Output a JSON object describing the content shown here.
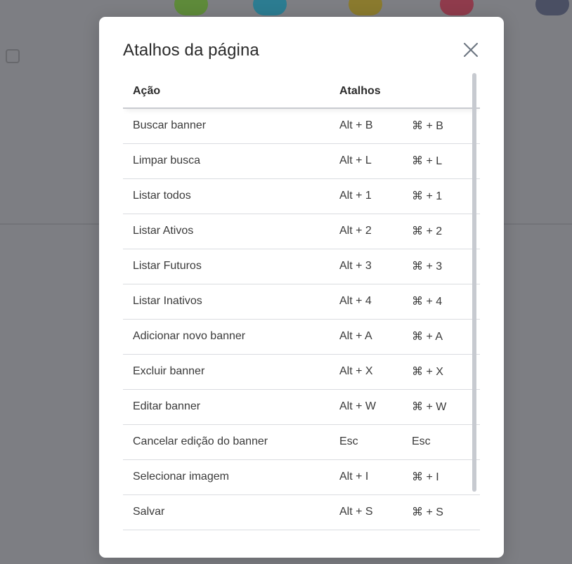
{
  "background": {
    "chip_colors": [
      "#5e8a3a",
      "#2c7c91",
      "#8a7a2e",
      "#8f3b4c",
      "#4a4f63"
    ]
  },
  "modal": {
    "title": "Atalhos da página",
    "close_icon": "close-icon",
    "columns": {
      "action": "Ação",
      "shortcuts": "Atalhos"
    },
    "rows": [
      {
        "action": "Buscar banner",
        "win": "Alt + B",
        "mac": "⌘ + B"
      },
      {
        "action": "Limpar busca",
        "win": "Alt + L",
        "mac": "⌘ + L"
      },
      {
        "action": "Listar todos",
        "win": "Alt + 1",
        "mac": "⌘ + 1"
      },
      {
        "action": "Listar Ativos",
        "win": "Alt + 2",
        "mac": "⌘ + 2"
      },
      {
        "action": "Listar Futuros",
        "win": "Alt + 3",
        "mac": "⌘ + 3"
      },
      {
        "action": "Listar Inativos",
        "win": "Alt + 4",
        "mac": "⌘ + 4"
      },
      {
        "action": "Adicionar novo banner",
        "win": "Alt + A",
        "mac": "⌘ + A"
      },
      {
        "action": "Excluir banner",
        "win": "Alt + X",
        "mac": "⌘ + X"
      },
      {
        "action": "Editar banner",
        "win": "Alt + W",
        "mac": "⌘ + W"
      },
      {
        "action": "Cancelar edição do banner",
        "win": "Esc",
        "mac": "Esc"
      },
      {
        "action": "Selecionar imagem",
        "win": "Alt + I",
        "mac": "⌘ + I"
      },
      {
        "action": "Salvar",
        "win": "Alt + S",
        "mac": "⌘ + S"
      }
    ]
  }
}
